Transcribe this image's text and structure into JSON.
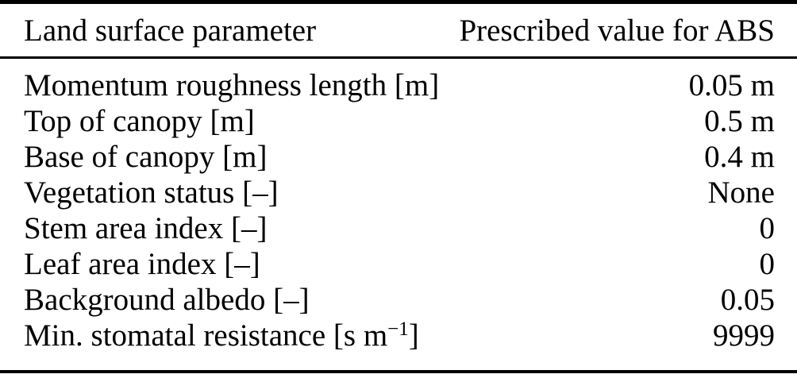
{
  "table": {
    "colors": {
      "text": "#000000",
      "background": "#ffffff",
      "rule": "#000000"
    },
    "header": {
      "parameter_col": "Land surface parameter",
      "value_col": "Prescribed value for ABS"
    },
    "rows": [
      {
        "label_pre": "Momentum roughness length [m]",
        "label_sup": "",
        "label_post": "",
        "value": "0.05 m"
      },
      {
        "label_pre": "Top of canopy [m]",
        "label_sup": "",
        "label_post": "",
        "value": "0.5 m"
      },
      {
        "label_pre": "Base of canopy [m]",
        "label_sup": "",
        "label_post": "",
        "value": "0.4 m"
      },
      {
        "label_pre": "Vegetation status [–]",
        "label_sup": "",
        "label_post": "",
        "value": "None"
      },
      {
        "label_pre": "Stem area index [–]",
        "label_sup": "",
        "label_post": "",
        "value": "0"
      },
      {
        "label_pre": "Leaf area index [–]",
        "label_sup": "",
        "label_post": "",
        "value": "0"
      },
      {
        "label_pre": "Background albedo [–]",
        "label_sup": "",
        "label_post": "",
        "value": "0.05"
      },
      {
        "label_pre": "Min. stomatal resistance [s m",
        "label_sup": "−1",
        "label_post": "]",
        "value": "9999"
      }
    ]
  }
}
